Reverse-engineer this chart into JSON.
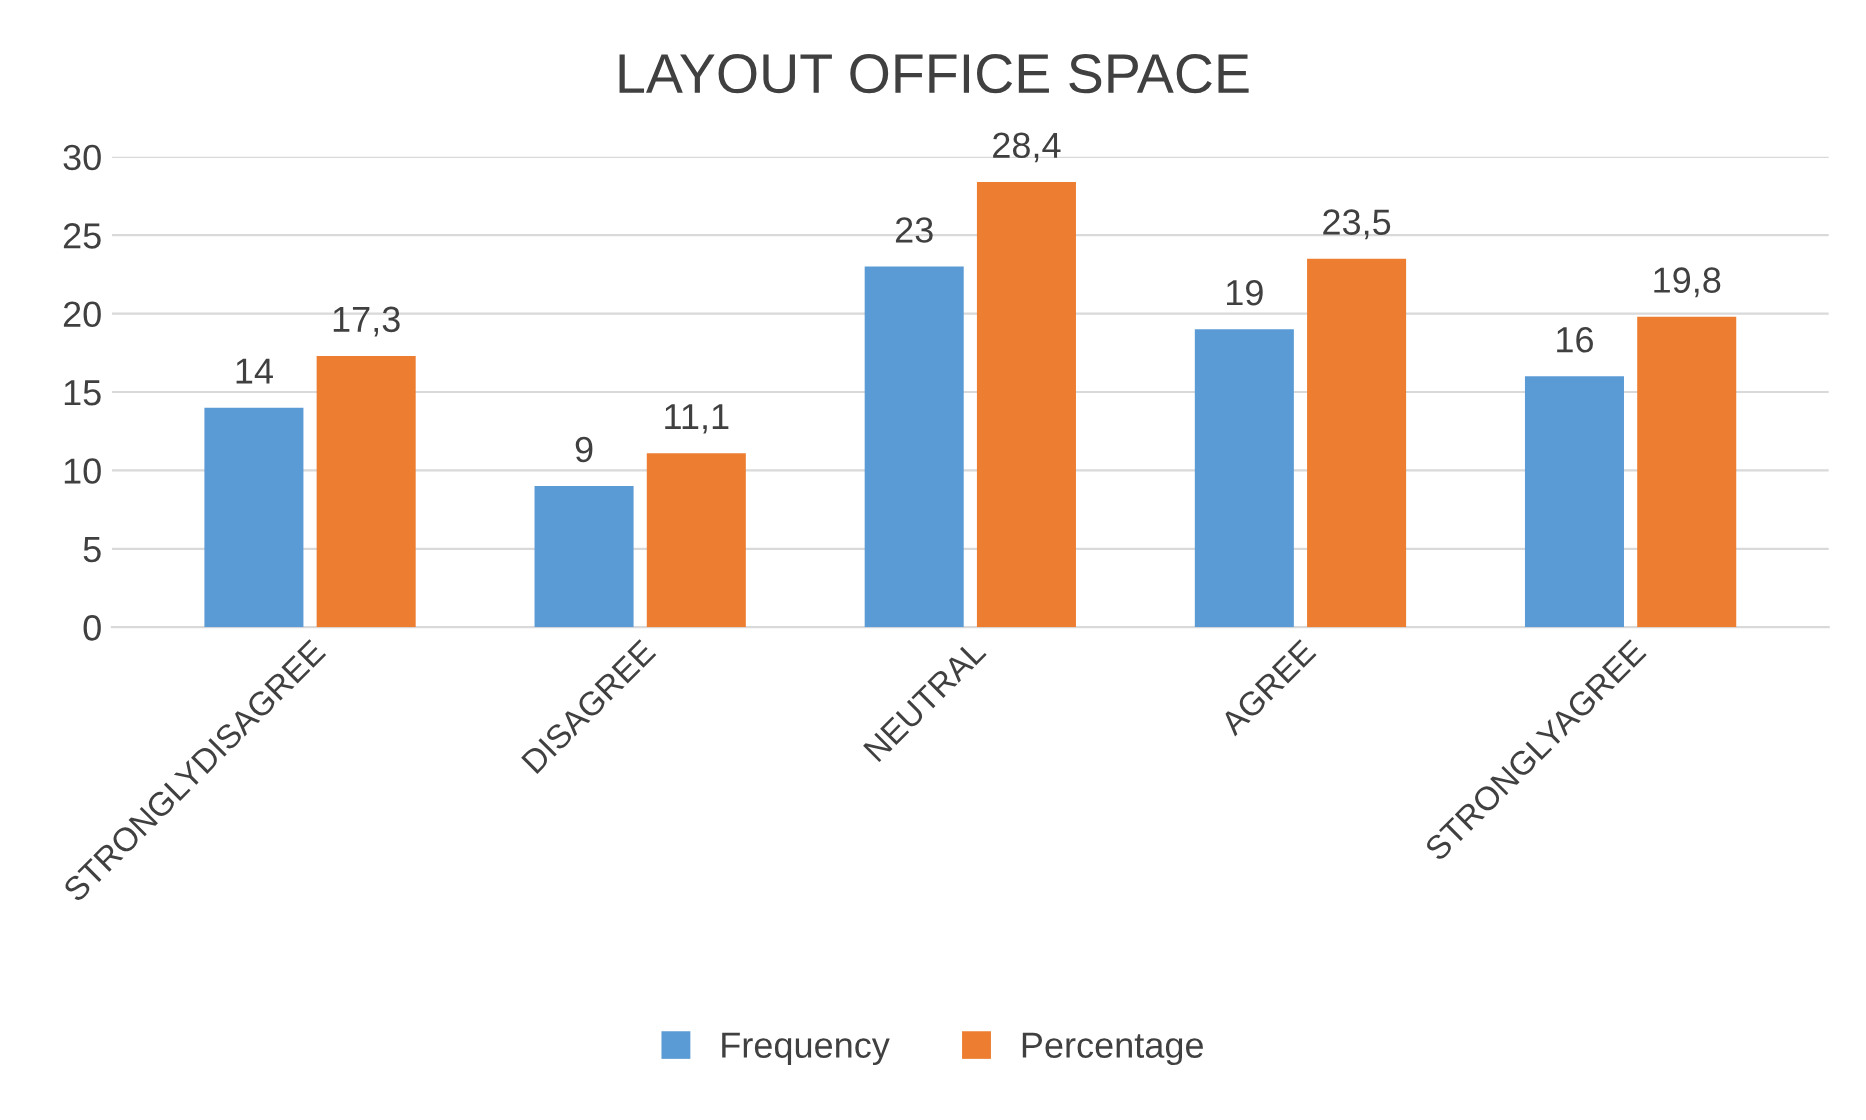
{
  "chart_data": {
    "type": "bar",
    "title": "LAYOUT OFFICE SPACE",
    "categories": [
      "STRONGLYDISAGREE",
      "DISAGREE",
      "NEUTRAL",
      "AGREE",
      "STRONGLYAGREE"
    ],
    "series": [
      {
        "name": "Frequency",
        "color": "#5b9bd5",
        "values": [
          14,
          9,
          23,
          19,
          16
        ],
        "value_labels": [
          "14",
          "9",
          "23",
          "19",
          "16"
        ]
      },
      {
        "name": "Percentage",
        "color": "#ed7d31",
        "values": [
          17.3,
          11.1,
          28.4,
          23.5,
          19.8
        ],
        "value_labels": [
          "17,3",
          "11,1",
          "28,4",
          "23,5",
          "19,8"
        ]
      }
    ],
    "ylim": [
      0,
      30
    ],
    "yticks": [
      0,
      5,
      10,
      15,
      20,
      25,
      30
    ],
    "grid": "y",
    "legend": "bottom"
  }
}
